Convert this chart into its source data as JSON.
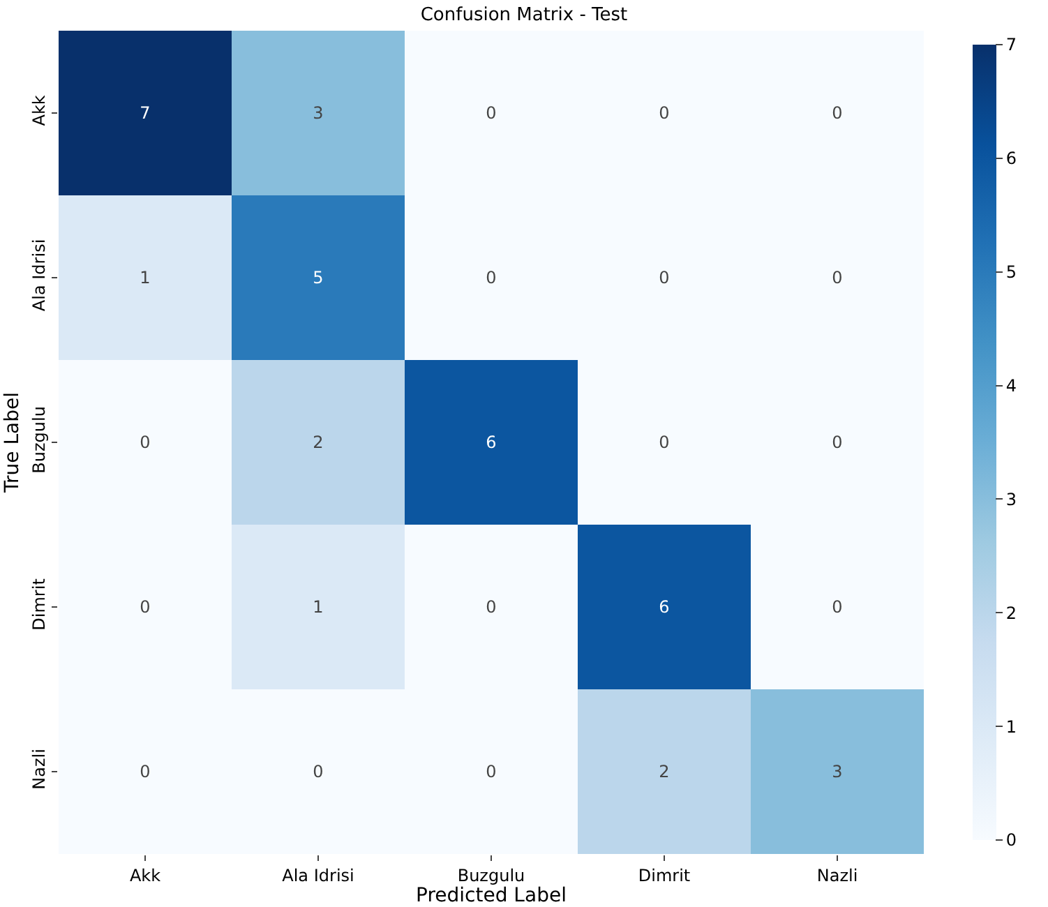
{
  "chart_data": {
    "type": "heatmap",
    "title": "Confusion Matrix - Test",
    "xlabel": "Predicted Label",
    "ylabel": "True Label",
    "categories": [
      "Akk",
      "Ala Idrisi",
      "Buzgulu",
      "Dimrit",
      "Nazli"
    ],
    "y_categories": [
      "Akk",
      "Ala Idrisi",
      "Buzgulu",
      "Dimrit",
      "Nazli"
    ],
    "cells": [
      [
        7,
        3,
        0,
        0,
        0
      ],
      [
        1,
        5,
        0,
        0,
        0
      ],
      [
        0,
        2,
        6,
        0,
        0
      ],
      [
        0,
        1,
        0,
        6,
        0
      ],
      [
        0,
        0,
        0,
        2,
        3
      ]
    ],
    "clim": [
      0,
      7
    ],
    "cticks": [
      0,
      1,
      2,
      3,
      4,
      5,
      6,
      7
    ],
    "data_labels": true
  }
}
